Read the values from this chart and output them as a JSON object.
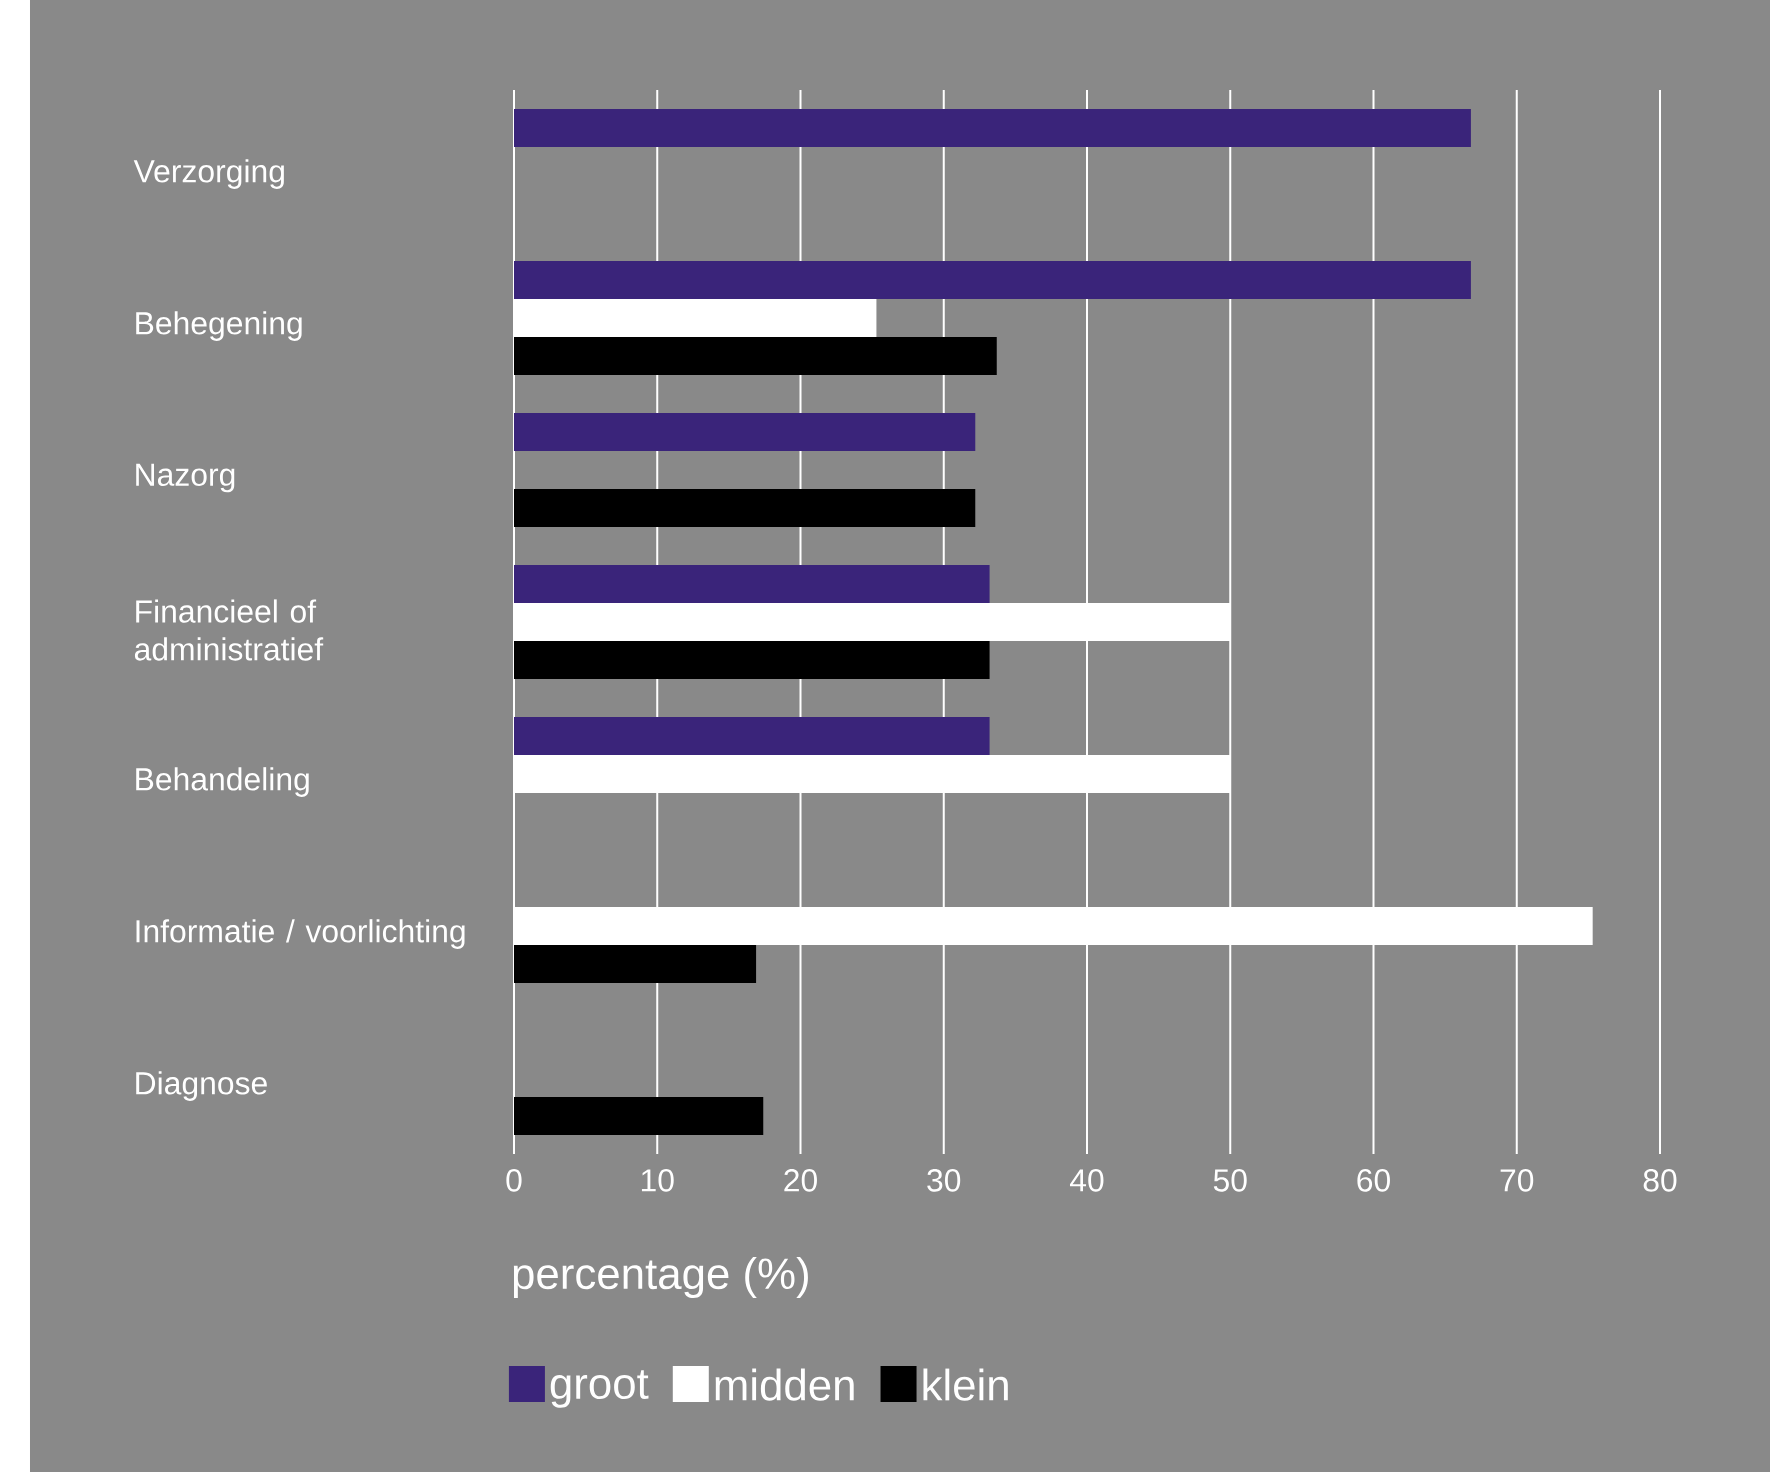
{
  "chart_data": {
    "type": "bar",
    "orientation": "horizontal",
    "xlabel": "percentage (%)",
    "categories": [
      "Verzorging",
      "Behegening",
      "Nazorg",
      "Financieel of administratief",
      "Behandeling",
      "Informatie / voorlichting",
      "Diagnose"
    ],
    "series": [
      {
        "name": "groot",
        "color": "#3a247a",
        "values": [
          66.8,
          66.8,
          32.2,
          33.2,
          33.2,
          null,
          null
        ]
      },
      {
        "name": "midden",
        "color": "#ffffff",
        "values": [
          null,
          25.3,
          null,
          50,
          50,
          75.3,
          null
        ]
      },
      {
        "name": "klein",
        "color": "#000000",
        "values": [
          null,
          33.7,
          32.2,
          33.2,
          null,
          16.9,
          17.4
        ]
      }
    ],
    "xlim": [
      0,
      80
    ],
    "xticks": [
      0,
      10,
      20,
      30,
      40,
      50,
      60,
      70,
      80
    ],
    "grid": "x",
    "legend": "bottom"
  }
}
